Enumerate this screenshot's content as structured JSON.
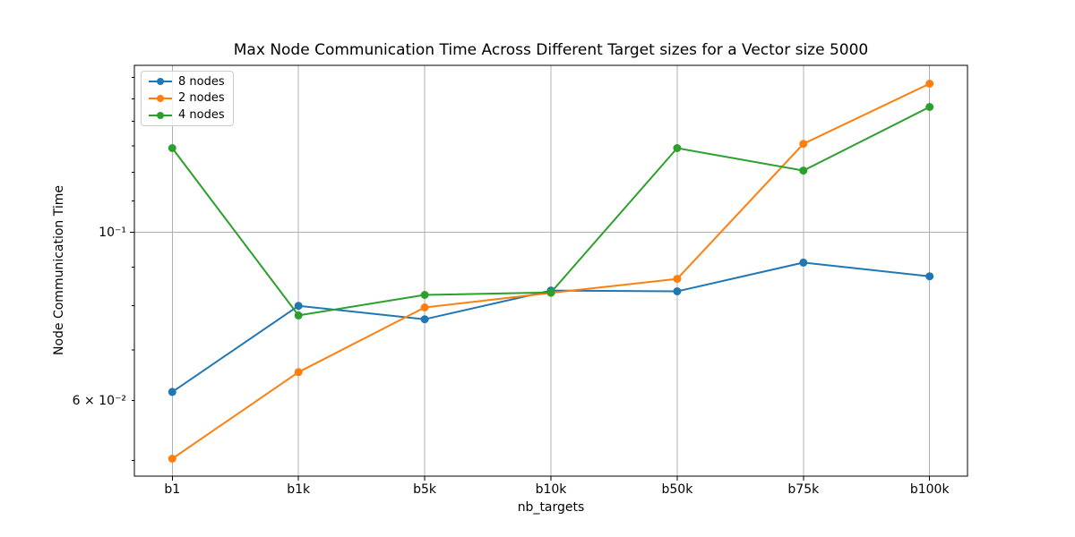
{
  "chart_data": {
    "type": "line",
    "title": "Max Node Communication Time Across Different Target sizes for a Vector size 5000",
    "xlabel": "nb_targets",
    "ylabel": "Node Communication Time",
    "categories": [
      "b1",
      "b1k",
      "b5k",
      "b10k",
      "b50k",
      "b75k",
      "b100k"
    ],
    "yscale": "log",
    "ylim": [
      0.0477,
      0.166
    ],
    "grid": true,
    "legend_position": "upper-left",
    "yticks": {
      "major": [
        {
          "value": 0.1,
          "label": "10⁻¹"
        }
      ],
      "labeled_minor": [
        {
          "value": 0.06,
          "label": "6 × 10⁻²"
        }
      ],
      "minor": [
        0.05,
        0.06,
        0.07,
        0.08,
        0.09,
        0.11,
        0.12,
        0.13,
        0.14,
        0.15,
        0.16
      ]
    },
    "series": [
      {
        "name": "8 nodes",
        "color": "#1f77b4",
        "values": [
          0.0616,
          0.08,
          0.0768,
          0.0838,
          0.0836,
          0.0912,
          0.0875
        ]
      },
      {
        "name": "2 nodes",
        "color": "#ff7f0e",
        "values": [
          0.0503,
          0.0654,
          0.0796,
          0.0832,
          0.0868,
          0.1308,
          0.157
        ]
      },
      {
        "name": "4 nodes",
        "color": "#2ca02c",
        "values": [
          0.1291,
          0.0777,
          0.0827,
          0.0833,
          0.1291,
          0.1206,
          0.1463
        ]
      }
    ]
  }
}
